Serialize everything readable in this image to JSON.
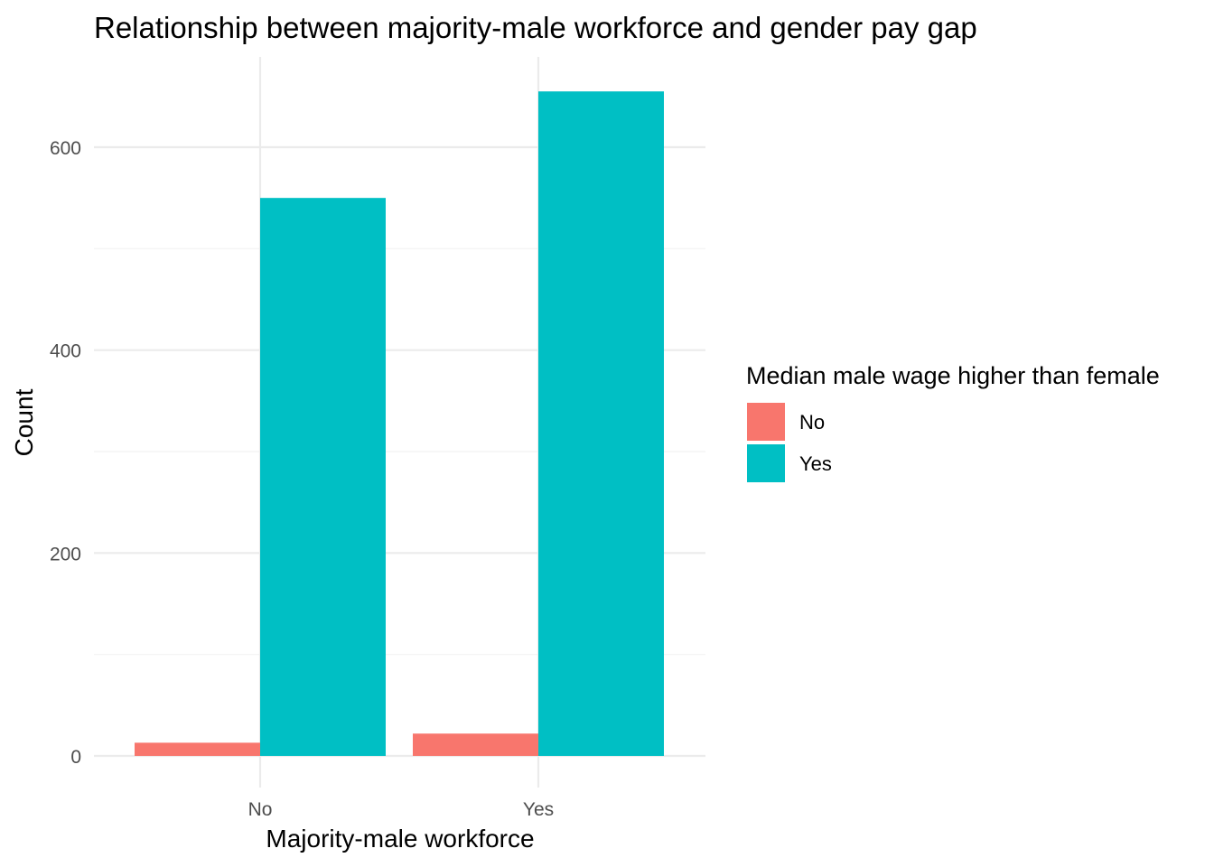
{
  "chart_data": {
    "type": "bar",
    "title": "Relationship between majority-male workforce and gender pay gap",
    "xlabel": "Majority-male workforce",
    "ylabel": "Count",
    "categories": [
      "No",
      "Yes"
    ],
    "series": [
      {
        "name": "No",
        "values": [
          13,
          22
        ],
        "color": "#F8766D"
      },
      {
        "name": "Yes",
        "values": [
          550,
          655
        ],
        "color": "#00BFC4"
      }
    ],
    "ylim": [
      0,
      690
    ],
    "yticks": [
      0,
      200,
      400,
      600
    ],
    "y_minor_ticks": [
      100,
      300,
      500
    ],
    "grid": true,
    "legend": {
      "title": "Median male wage higher than female",
      "position": "right"
    }
  }
}
